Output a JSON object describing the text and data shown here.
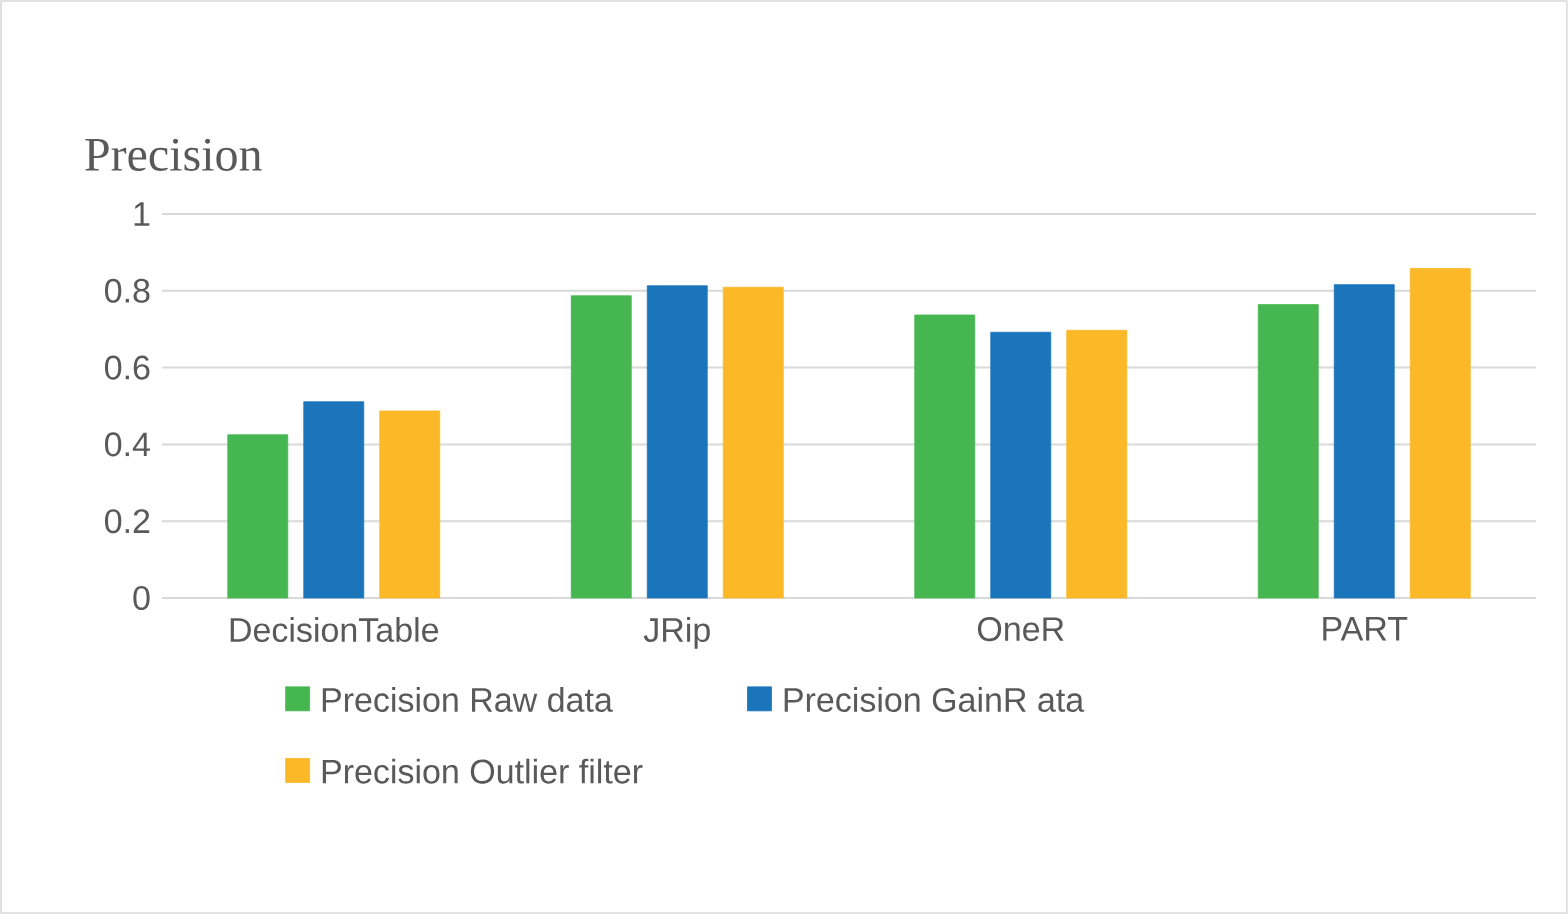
{
  "chart_data": {
    "type": "bar",
    "title": "Precision",
    "categories": [
      "DecisionTable",
      "JRip",
      "OneR",
      "PART"
    ],
    "series": [
      {
        "name": "Precision Raw data",
        "color": "#46b650",
        "values": [
          0.425,
          0.787,
          0.737,
          0.764
        ]
      },
      {
        "name": "Precision GainR ata",
        "color": "#1b75bb",
        "values": [
          0.511,
          0.813,
          0.692,
          0.816
        ]
      },
      {
        "name": "Precision Outlier filter",
        "color": "#fbb827",
        "values": [
          0.487,
          0.809,
          0.697,
          0.858
        ]
      }
    ],
    "ylim": [
      0,
      1
    ],
    "yticks": [
      0,
      0.2,
      0.4,
      0.6,
      0.8,
      1
    ],
    "grid": "y",
    "legend": "bottom"
  }
}
